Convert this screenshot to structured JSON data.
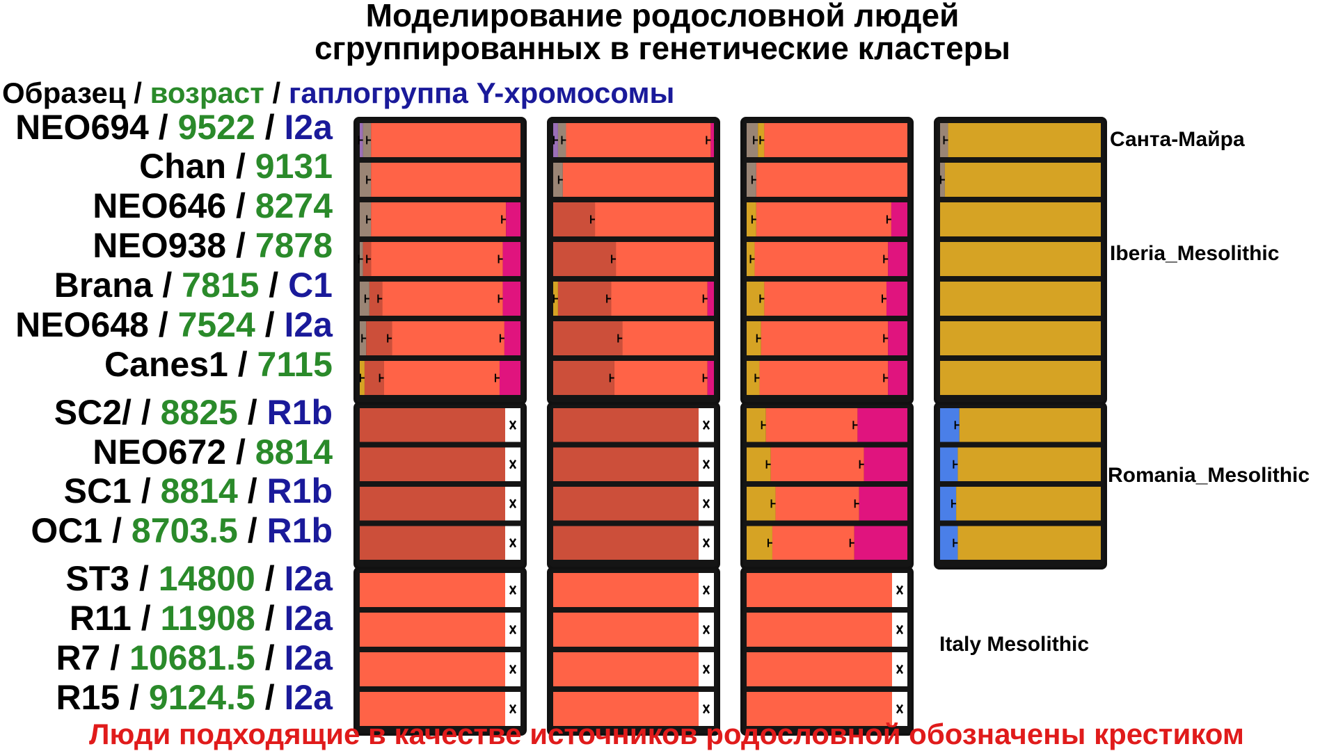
{
  "title_lines": [
    "Моделирование родословной людей",
    "сгруппированных в генетические кластеры"
  ],
  "header": {
    "sample": "Образец",
    "sep": " / ",
    "age": "возраст",
    "haplogroup": "гаплогруппа Y-хромосомы"
  },
  "footer": "Люди подходящие в качестве источников родословной обозначены крестиком",
  "colors": {
    "sample": "#000000",
    "age": "#2a8a2a",
    "haplogroup": "#1a1a9a",
    "footer": "#e01b1b",
    "panel_border": "#111111",
    "bar_gap": "#151515",
    "source_mark_bg": "#ffffff",
    "error_bar": "#000000"
  },
  "chart_data": {
    "type": "bar",
    "orientation": "horizontal-stacked",
    "component_colors": {
      "gray": "#9a8575",
      "purple": "#9b6fb8",
      "red": "#cc4f3a",
      "orange": "#ff6347",
      "magenta": "#e0147e",
      "yellow": "#d6a324",
      "blue": "#4a7fe8"
    },
    "groups": [
      {
        "label": "Santa Maira + Iberia_Mesolithic",
        "row_labels": [
          "Санта-Майра",
          "Iberia_Mesolithic"
        ],
        "samples": [
          {
            "name": "NEO694",
            "age": "9522",
            "haplogroup": "I2a"
          },
          {
            "name": "Chan",
            "age": "9131",
            "haplogroup": ""
          },
          {
            "name": "NEO646",
            "age": "8274",
            "haplogroup": ""
          },
          {
            "name": "NEO938",
            "age": "7878",
            "haplogroup": ""
          },
          {
            "name": "Brana",
            "age": "7815",
            "haplogroup": "C1"
          },
          {
            "name": "NEO648",
            "age": "7524",
            "haplogroup": "I2a"
          },
          {
            "name": "Canes1",
            "age": "7115",
            "haplogroup": ""
          }
        ],
        "models": [
          {
            "rows": [
              [
                [
                  "purple",
                  0.02
                ],
                [
                  "gray",
                  0.05
                ],
                [
                  "orange",
                  0.93
                ]
              ],
              [
                [
                  "gray",
                  0.07
                ],
                [
                  "orange",
                  0.93
                ]
              ],
              [
                [
                  "gray",
                  0.07
                ],
                [
                  "orange",
                  0.84
                ],
                [
                  "magenta",
                  0.09
                ]
              ],
              [
                [
                  "gray",
                  0.02
                ],
                [
                  "red",
                  0.05
                ],
                [
                  "orange",
                  0.82
                ],
                [
                  "magenta",
                  0.11
                ]
              ],
              [
                [
                  "gray",
                  0.06
                ],
                [
                  "red",
                  0.08
                ],
                [
                  "orange",
                  0.75
                ],
                [
                  "magenta",
                  0.11
                ]
              ],
              [
                [
                  "gray",
                  0.04
                ],
                [
                  "red",
                  0.16
                ],
                [
                  "orange",
                  0.7
                ],
                [
                  "magenta",
                  0.1
                ]
              ],
              [
                [
                  "yellow",
                  0.03
                ],
                [
                  "red",
                  0.12
                ],
                [
                  "orange",
                  0.72
                ],
                [
                  "magenta",
                  0.13
                ]
              ]
            ]
          },
          {
            "rows": [
              [
                [
                  "purple",
                  0.03
                ],
                [
                  "gray",
                  0.05
                ],
                [
                  "orange",
                  0.9
                ],
                [
                  "magenta",
                  0.02
                ]
              ],
              [
                [
                  "gray",
                  0.06
                ],
                [
                  "orange",
                  0.94
                ]
              ],
              [
                [
                  "red",
                  0.26
                ],
                [
                  "orange",
                  0.74
                ]
              ],
              [
                [
                  "red",
                  0.39
                ],
                [
                  "orange",
                  0.61
                ]
              ],
              [
                [
                  "yellow",
                  0.03
                ],
                [
                  "red",
                  0.33
                ],
                [
                  "orange",
                  0.6
                ],
                [
                  "magenta",
                  0.04
                ]
              ],
              [
                [
                  "red",
                  0.43
                ],
                [
                  "orange",
                  0.57
                ]
              ],
              [
                [
                  "red",
                  0.38
                ],
                [
                  "orange",
                  0.58
                ],
                [
                  "magenta",
                  0.04
                ]
              ]
            ]
          },
          {
            "rows": [
              [
                [
                  "gray",
                  0.07
                ],
                [
                  "yellow",
                  0.04
                ],
                [
                  "orange",
                  0.89
                ]
              ],
              [
                [
                  "gray",
                  0.06
                ],
                [
                  "orange",
                  0.94
                ]
              ],
              [
                [
                  "yellow",
                  0.06
                ],
                [
                  "orange",
                  0.84
                ],
                [
                  "magenta",
                  0.1
                ]
              ],
              [
                [
                  "yellow",
                  0.05
                ],
                [
                  "orange",
                  0.83
                ],
                [
                  "magenta",
                  0.12
                ]
              ],
              [
                [
                  "yellow",
                  0.11
                ],
                [
                  "orange",
                  0.76
                ],
                [
                  "magenta",
                  0.13
                ]
              ],
              [
                [
                  "yellow",
                  0.09
                ],
                [
                  "orange",
                  0.79
                ],
                [
                  "magenta",
                  0.12
                ]
              ],
              [
                [
                  "yellow",
                  0.08
                ],
                [
                  "orange",
                  0.8
                ],
                [
                  "magenta",
                  0.12
                ]
              ]
            ]
          },
          {
            "rows": [
              [
                [
                  "gray",
                  0.05
                ],
                [
                  "yellow",
                  0.95
                ]
              ],
              [
                [
                  "gray",
                  0.03
                ],
                [
                  "yellow",
                  0.97
                ]
              ],
              [
                [
                  "yellow",
                  1.0
                ]
              ],
              [
                [
                  "yellow",
                  1.0
                ]
              ],
              [
                [
                  "yellow",
                  1.0
                ]
              ],
              [
                [
                  "yellow",
                  1.0
                ]
              ],
              [
                [
                  "yellow",
                  1.0
                ]
              ]
            ]
          }
        ]
      },
      {
        "label": "Romania_Mesolithic",
        "row_labels": [
          "Romania_Mesolithic"
        ],
        "samples": [
          {
            "name": "SC2/",
            "age": "8825",
            "haplogroup": "R1b"
          },
          {
            "name": "NEO672",
            "age": "8814",
            "haplogroup": ""
          },
          {
            "name": "SC1",
            "age": "8814",
            "haplogroup": "R1b"
          },
          {
            "name": "OC1",
            "age": "8703.5",
            "haplogroup": "R1b"
          }
        ],
        "models": [
          {
            "source_marked": true,
            "rows": [
              [
                [
                  "red",
                  1.0
                ]
              ],
              [
                [
                  "red",
                  1.0
                ]
              ],
              [
                [
                  "red",
                  1.0
                ]
              ],
              [
                [
                  "red",
                  1.0
                ]
              ]
            ]
          },
          {
            "source_marked": true,
            "rows": [
              [
                [
                  "red",
                  1.0
                ]
              ],
              [
                [
                  "red",
                  1.0
                ]
              ],
              [
                [
                  "red",
                  1.0
                ]
              ],
              [
                [
                  "red",
                  1.0
                ]
              ]
            ]
          },
          {
            "rows": [
              [
                [
                  "yellow",
                  0.12
                ],
                [
                  "orange",
                  0.57
                ],
                [
                  "magenta",
                  0.31
                ]
              ],
              [
                [
                  "yellow",
                  0.15
                ],
                [
                  "orange",
                  0.58
                ],
                [
                  "magenta",
                  0.27
                ]
              ],
              [
                [
                  "yellow",
                  0.18
                ],
                [
                  "orange",
                  0.52
                ],
                [
                  "magenta",
                  0.3
                ]
              ],
              [
                [
                  "yellow",
                  0.16
                ],
                [
                  "orange",
                  0.51
                ],
                [
                  "magenta",
                  0.33
                ]
              ]
            ]
          },
          {
            "rows": [
              [
                [
                  "blue",
                  0.12
                ],
                [
                  "yellow",
                  0.88
                ]
              ],
              [
                [
                  "blue",
                  0.11
                ],
                [
                  "yellow",
                  0.89
                ]
              ],
              [
                [
                  "blue",
                  0.1
                ],
                [
                  "yellow",
                  0.9
                ]
              ],
              [
                [
                  "blue",
                  0.11
                ],
                [
                  "yellow",
                  0.89
                ]
              ]
            ]
          }
        ]
      },
      {
        "label": "Italy Mesolithic",
        "row_labels": [
          "Italy Mesolithic"
        ],
        "samples": [
          {
            "name": "ST3",
            "age": "14800",
            "haplogroup": "I2a"
          },
          {
            "name": "R11",
            "age": "11908",
            "haplogroup": "I2a"
          },
          {
            "name": "R7",
            "age": "10681.5",
            "haplogroup": "I2a"
          },
          {
            "name": "R15",
            "age": "9124.5",
            "haplogroup": "I2a"
          }
        ],
        "models": [
          {
            "source_marked": true,
            "rows": [
              [
                [
                  "orange",
                  1.0
                ]
              ],
              [
                [
                  "orange",
                  1.0
                ]
              ],
              [
                [
                  "orange",
                  1.0
                ]
              ],
              [
                [
                  "orange",
                  1.0
                ]
              ]
            ]
          },
          {
            "source_marked": true,
            "rows": [
              [
                [
                  "orange",
                  1.0
                ]
              ],
              [
                [
                  "orange",
                  1.0
                ]
              ],
              [
                [
                  "orange",
                  1.0
                ]
              ],
              [
                [
                  "orange",
                  1.0
                ]
              ]
            ]
          },
          {
            "source_marked": true,
            "rows": [
              [
                [
                  "orange",
                  1.0
                ]
              ],
              [
                [
                  "orange",
                  1.0
                ]
              ],
              [
                [
                  "orange",
                  1.0
                ]
              ],
              [
                [
                  "orange",
                  1.0
                ]
              ]
            ]
          }
        ]
      }
    ]
  }
}
